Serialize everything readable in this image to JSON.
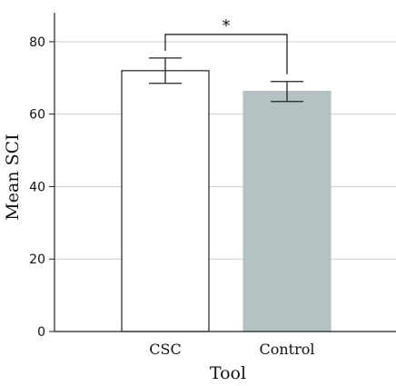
{
  "chart_data": {
    "type": "bar",
    "title": "",
    "xlabel": "Tool",
    "ylabel": "Mean SCI",
    "categories": [
      "CSC",
      "Control"
    ],
    "values": [
      72,
      66.3
    ],
    "error_low": [
      68.5,
      63.5
    ],
    "error_high": [
      75.5,
      69
    ],
    "bar_colors": [
      "#ffffff",
      "#b4c2c4"
    ],
    "bar_edge_colors": [
      "#222222",
      "#b4c2c4"
    ],
    "ylim": [
      0,
      88
    ],
    "yticks": [
      0,
      20,
      40,
      60,
      80
    ],
    "grid": true,
    "grid_color": "#c8d0d0",
    "significance": {
      "between": [
        "CSC",
        "Control"
      ],
      "label": "*",
      "y": 82
    }
  }
}
